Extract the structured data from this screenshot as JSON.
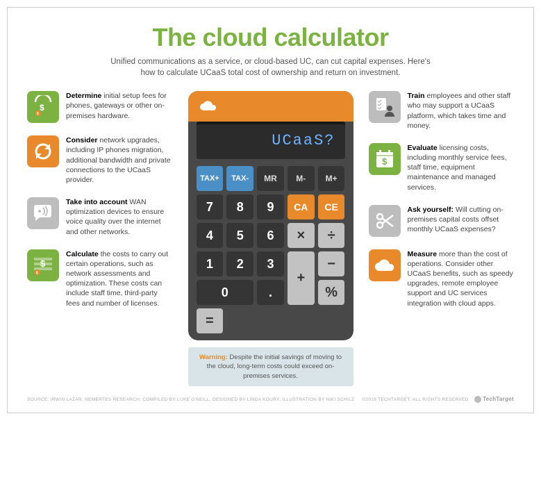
{
  "colors": {
    "green": "#7bb241",
    "orange": "#e88a2c",
    "iconGray": "#bdbdbd",
    "calcBody": "#484848",
    "displayText": "#6fb3ff",
    "warnBg": "#d9e4e9"
  },
  "title": "The cloud calculator",
  "subtitle": "Unified communications as a service, or cloud-based UC, can cut capital expenses. Here's how to calculate UCaaS total cost of ownership and return on investment.",
  "left": [
    {
      "color": "green",
      "icon": "money-gauge",
      "bold": "Determine",
      "rest": " initial setup fees for phones, gateways or other on-premises hardware."
    },
    {
      "color": "orange",
      "icon": "refresh",
      "bold": "Consider",
      "rest": " network upgrades, including IP phones migration, additional bandwidth and private connections to the UCaaS provider."
    },
    {
      "color": "iconGray",
      "icon": "wifi-bubble",
      "bold": "Take into account",
      "rest": " WAN optimization devices to ensure voice quality over the internet and other networks."
    },
    {
      "color": "green",
      "icon": "money-bars",
      "bold": "Calculate",
      "rest": " the costs to carry out certain operations, such as network assessments and optimization. These costs can include staff time, third-party fees and number of licenses."
    }
  ],
  "right": [
    {
      "color": "iconGray",
      "icon": "checklist-person",
      "bold": "Train",
      "rest": " employees and other staff who may support a UCaaS platform, which takes time and money."
    },
    {
      "color": "green",
      "icon": "calendar-money",
      "bold": "Evaluate",
      "rest": " licensing costs, including monthly service fees, staff time, equipment maintenance and managed services."
    },
    {
      "color": "iconGray",
      "icon": "scissors",
      "bold": "Ask yourself:",
      "rest": " Will cutting on-premises capital costs offset monthly UCaaS expenses?"
    },
    {
      "color": "orange",
      "icon": "cloud",
      "bold": "Measure",
      "rest": " more than the cost of operations. Consider other UCaaS benefits, such as speedy upgrades, remote employee support and UC services integration with cloud apps."
    }
  ],
  "calculator": {
    "topColor": "orange",
    "displayText": "UCaaS?",
    "keys": [
      {
        "l": "TAX+",
        "c": "k-blue"
      },
      {
        "l": "TAX-",
        "c": "k-blue"
      },
      {
        "l": "MR",
        "c": "k-mem"
      },
      {
        "l": "M-",
        "c": "k-mem"
      },
      {
        "l": "M+",
        "c": "k-mem"
      },
      {
        "l": "7",
        "c": "k-num"
      },
      {
        "l": "8",
        "c": "k-num"
      },
      {
        "l": "9",
        "c": "k-num"
      },
      {
        "l": "CA",
        "c": "k-orng"
      },
      {
        "l": "CE",
        "c": "k-orng"
      },
      {
        "l": "4",
        "c": "k-num"
      },
      {
        "l": "5",
        "c": "k-num"
      },
      {
        "l": "6",
        "c": "k-num"
      },
      {
        "l": "×",
        "c": "k-gray k-mid"
      },
      {
        "l": "÷",
        "c": "k-gray k-mid"
      },
      {
        "l": "1",
        "c": "k-num"
      },
      {
        "l": "2",
        "c": "k-num"
      },
      {
        "l": "3",
        "c": "k-num"
      },
      {
        "l": "+",
        "c": "k-gray k-mid k-tall"
      },
      {
        "l": "−",
        "c": "k-gray k-mid"
      },
      {
        "l": "0",
        "c": "k-num k-wide"
      },
      {
        "l": ".",
        "c": "k-num"
      },
      {
        "l": "%",
        "c": "k-gray k-mid"
      },
      {
        "l": "=",
        "c": "k-gray k-mid"
      }
    ]
  },
  "warning": {
    "label": "Warning:",
    "text": " Despite the initial savings of moving to the cloud, long-term costs could exceed on-premises services."
  },
  "footer": {
    "credits": "SOURCE: IRWIN LAZAR, NEMERTES RESEARCH; COMPILED BY LUKE O'NEILL; DESIGNED BY LINDA KOURY; ILLUSTRATION BY NIKI SCHILZ",
    "rights": "©2019 TECHTARGET. ALL RIGHTS RESERVED",
    "brand": "TechTarget"
  }
}
